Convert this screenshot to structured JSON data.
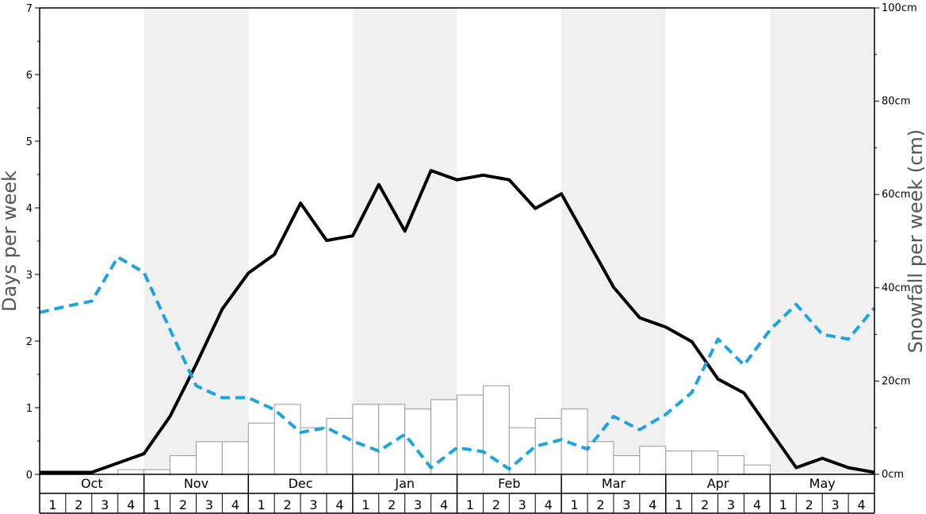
{
  "chart_data": {
    "type": "bar",
    "title": "",
    "ylabel": "Days per week",
    "y2label": "Snowfall per week (cm)",
    "ylim": [
      0,
      7
    ],
    "y2lim": [
      0,
      100
    ],
    "y_ticks": [
      "0",
      "1",
      "2",
      "3",
      "4",
      "5",
      "6",
      "7"
    ],
    "y2_ticks": [
      "0cm",
      "20cm",
      "40cm",
      "60cm",
      "80cm",
      "100cm"
    ],
    "months": [
      "Oct",
      "Nov",
      "Dec",
      "Jan",
      "Feb",
      "Mar",
      "Apr",
      "May"
    ],
    "weeks": [
      "1",
      "2",
      "3",
      "4"
    ],
    "shaded_months": [
      1,
      3,
      5,
      7
    ],
    "colors": {
      "snowfall_bars": "#ffffff",
      "bar_stroke": "#999999",
      "line_solid": "#000000",
      "line_dashed": "#1ba3e3",
      "shade": "#f0f0f0"
    },
    "series": [
      {
        "axis": "right",
        "kind": "bar",
        "values": [
          0,
          0,
          0,
          1,
          1,
          4,
          7,
          7,
          11,
          15,
          10,
          12,
          15,
          15,
          14,
          16,
          17,
          19,
          10,
          12,
          14,
          7,
          4,
          6,
          5,
          5,
          4,
          2,
          0,
          0,
          0,
          0
        ]
      },
      {
        "axis": "left",
        "kind": "line",
        "style": "solid",
        "values": [
          0.03,
          0.03,
          0.03,
          0.17,
          0.31,
          0.87,
          1.65,
          2.48,
          3.02,
          3.3,
          4.07,
          3.51,
          3.58,
          4.35,
          3.65,
          4.56,
          4.42,
          4.49,
          4.42,
          3.99,
          4.21,
          3.51,
          2.81,
          2.35,
          2.21,
          1.99,
          1.43,
          1.22,
          0.66,
          0.1,
          0.24,
          0.1,
          0.03
        ]
      },
      {
        "axis": "left",
        "kind": "line",
        "style": "dashed",
        "values": [
          2.43,
          2.52,
          2.6,
          3.26,
          3.03,
          2.17,
          1.33,
          1.15,
          1.15,
          0.97,
          0.63,
          0.7,
          0.5,
          0.35,
          0.6,
          0.1,
          0.4,
          0.34,
          0.08,
          0.42,
          0.52,
          0.38,
          0.87,
          0.67,
          0.9,
          1.23,
          2.03,
          1.64,
          2.17,
          2.55,
          2.1,
          2.03,
          2.5
        ]
      }
    ]
  }
}
